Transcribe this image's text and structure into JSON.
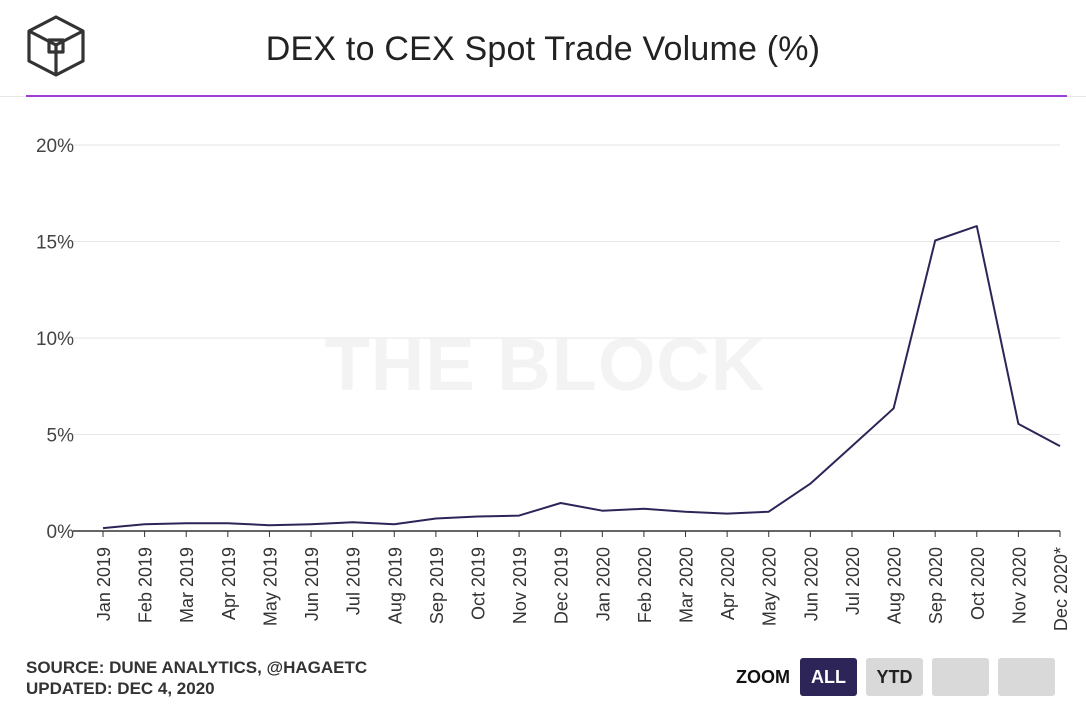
{
  "header": {
    "title": "DEX to CEX Spot Trade Volume (%)"
  },
  "footer": {
    "source": "SOURCE: DUNE ANALYTICS, @HAGAETC",
    "updated": "UPDATED: DEC 4, 2020"
  },
  "zoom": {
    "label": "ZOOM",
    "buttons": [
      "ALL",
      "YTD",
      "",
      ""
    ],
    "active": "ALL"
  },
  "watermark": "THE BLOCK",
  "colors": {
    "line": "#2d2558",
    "accent": "#9b3fd6",
    "active_button": "#2d2558",
    "button": "#d9d9d9"
  },
  "chart_data": {
    "type": "line",
    "title": "DEX to CEX Spot Trade Volume (%)",
    "categories": [
      "Jan 2019",
      "Feb 2019",
      "Mar 2019",
      "Apr 2019",
      "May 2019",
      "Jun 2019",
      "Jul 2019",
      "Aug 2019",
      "Sep 2019",
      "Oct 2019",
      "Nov 2019",
      "Dec 2019",
      "Jan 2020",
      "Feb 2020",
      "Mar 2020",
      "Apr 2020",
      "May 2020",
      "Jun 2020",
      "Jul 2020",
      "Aug 2020",
      "Sep 2020",
      "Oct 2020",
      "Nov 2020",
      "Dec 2020*"
    ],
    "series": [
      {
        "values": [
          0.15,
          0.35,
          0.4,
          0.4,
          0.3,
          0.35,
          0.45,
          0.35,
          0.65,
          0.75,
          0.8,
          1.45,
          1.05,
          1.15,
          1.0,
          0.9,
          1.0,
          2.45,
          4.4,
          6.35,
          15.05,
          15.8,
          5.55,
          4.4
        ]
      }
    ],
    "yticks": [
      "0%",
      "5%",
      "10%",
      "15%",
      "20%"
    ],
    "ylim": [
      0,
      20
    ],
    "grid": true,
    "legend": "none"
  }
}
